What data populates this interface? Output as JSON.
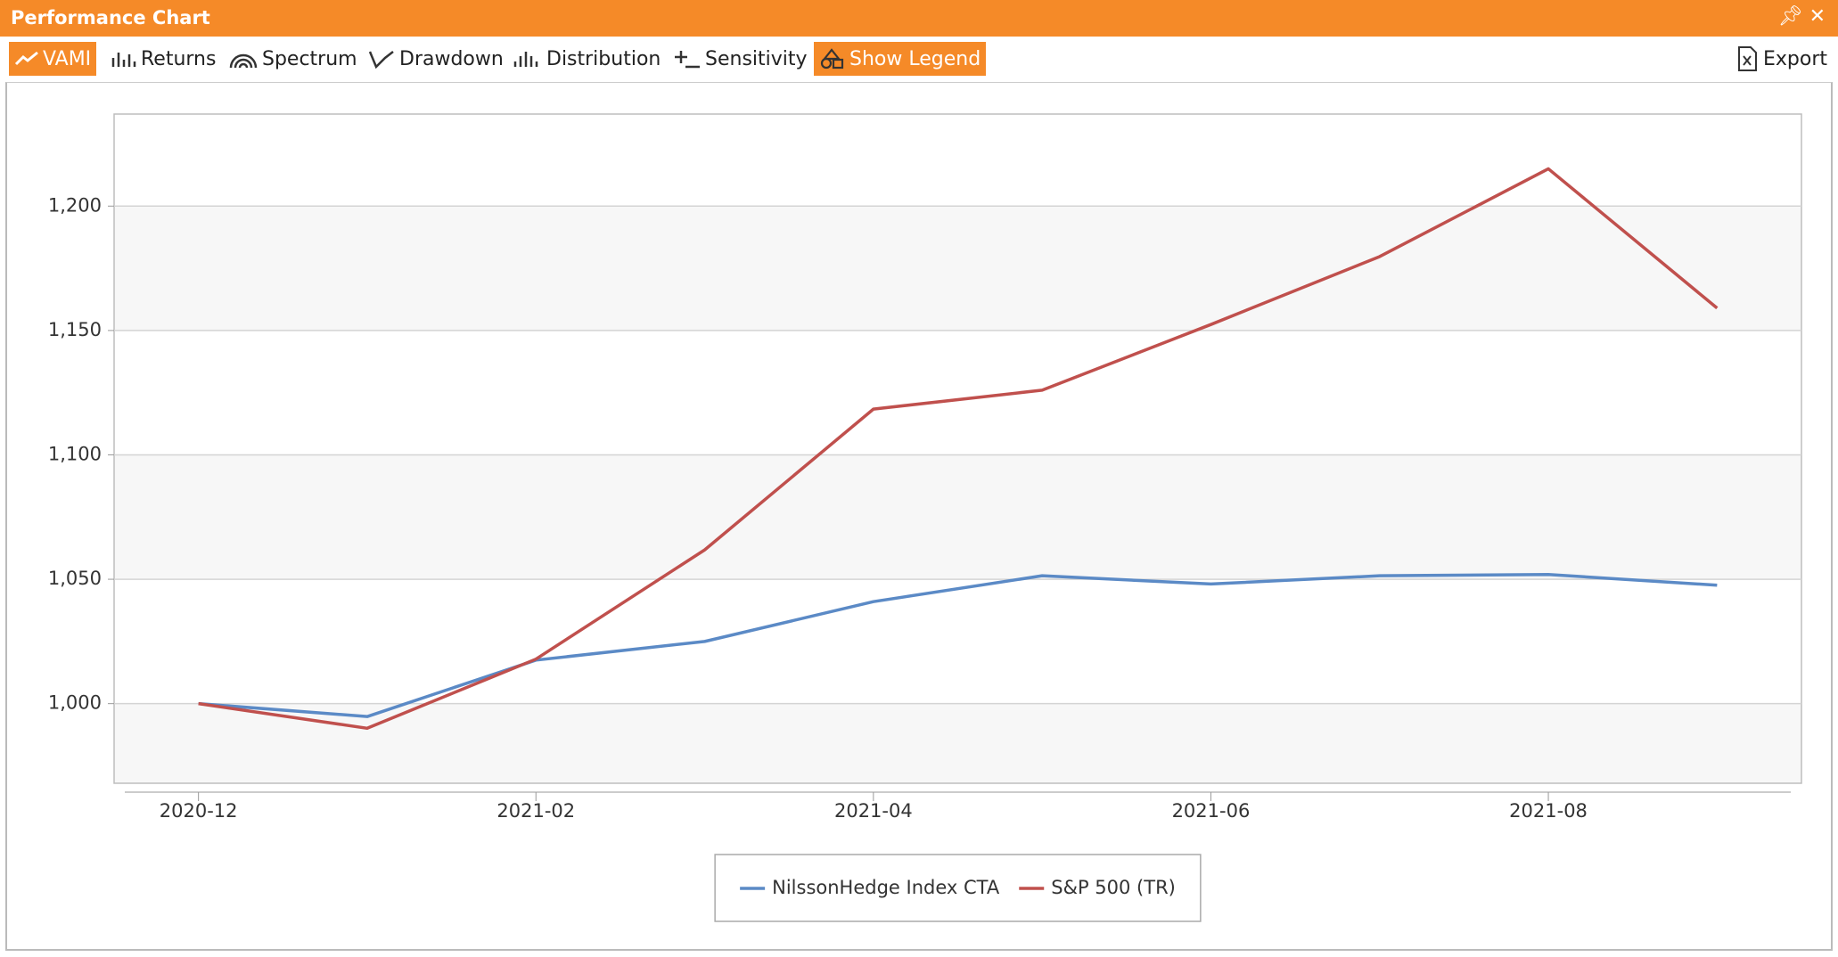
{
  "header": {
    "title": "Performance Chart"
  },
  "toolbar": {
    "buttons": [
      "VAMI",
      "Returns",
      "Spectrum",
      "Drawdown",
      "Distribution",
      "Sensitivity",
      "Show Legend"
    ],
    "export": "Export"
  },
  "chart_data": {
    "type": "line",
    "x": [
      "2020-12",
      "2021-01",
      "2021-02",
      "2021-03",
      "2021-04",
      "2021-05",
      "2021-06",
      "2021-07",
      "2021-08",
      "2021-09"
    ],
    "xticks": [
      "2020-12",
      "2021-02",
      "2021-04",
      "2021-06",
      "2021-08"
    ],
    "ylim": [
      968,
      1237
    ],
    "yticks": [
      {
        "value": 1000,
        "label": "1,000"
      },
      {
        "value": 1050,
        "label": "1,050"
      },
      {
        "value": 1100,
        "label": "1,100"
      },
      {
        "value": 1150,
        "label": "1,150"
      },
      {
        "value": 1200,
        "label": "1,200"
      }
    ],
    "grid": true,
    "legend": "bottom",
    "series": [
      {
        "name": "NilssonHedge Index CTA",
        "color": "#5b8ac6",
        "values": [
          1000,
          994.8,
          1017.5,
          1025,
          1041,
          1051.4,
          1048.1,
          1051.4,
          1051.9,
          1047.6
        ]
      },
      {
        "name": "S&P 500 (TR)",
        "color": "#c0504d",
        "values": [
          1000,
          990.1,
          1017.9,
          1061.8,
          1118.4,
          1126,
          1152.4,
          1179.7,
          1215,
          1159
        ]
      }
    ]
  }
}
